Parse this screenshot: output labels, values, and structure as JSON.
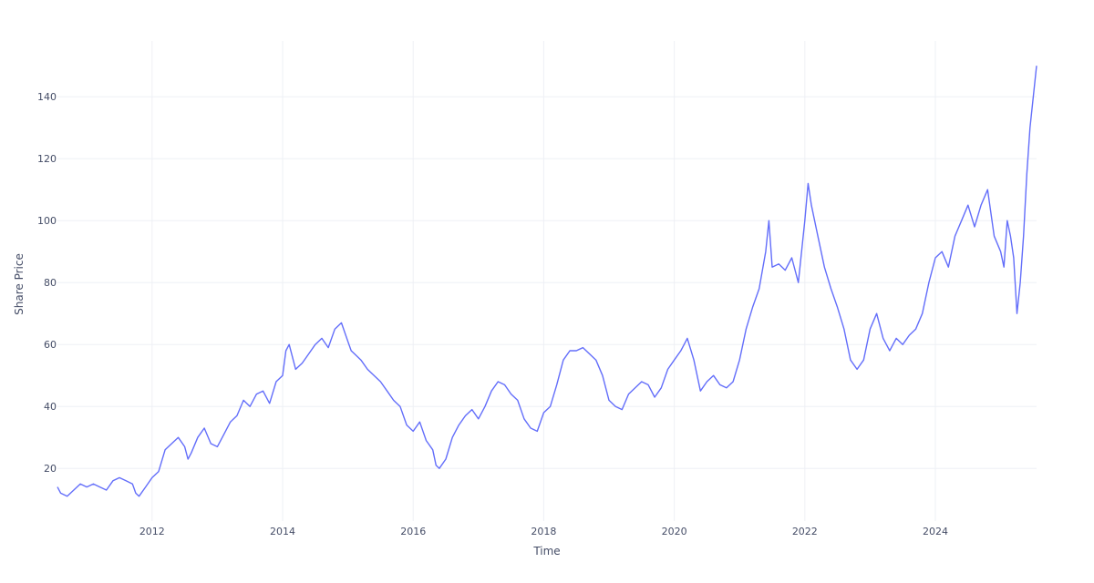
{
  "chart_data": {
    "type": "line",
    "title": "",
    "xlabel": "Time",
    "ylabel": "Share Price",
    "xlim": [
      2010.55,
      2025.55
    ],
    "ylim": [
      3,
      158
    ],
    "x_ticks": [
      2012,
      2014,
      2016,
      2018,
      2020,
      2022,
      2024
    ],
    "x_tick_labels": [
      "2012",
      "2014",
      "2016",
      "2018",
      "2020",
      "2022",
      "2024"
    ],
    "y_ticks": [
      20,
      40,
      60,
      80,
      100,
      120,
      140
    ],
    "y_tick_labels": [
      "20",
      "40",
      "60",
      "80",
      "100",
      "120",
      "140"
    ],
    "grid": true,
    "colors": {
      "line": "#636efa",
      "grid": "#eef0f5",
      "text": "#444c66"
    },
    "series": [
      {
        "x": [
          2010.55,
          2010.6,
          2010.7,
          2010.8,
          2010.9,
          2011.0,
          2011.1,
          2011.2,
          2011.3,
          2011.4,
          2011.5,
          2011.6,
          2011.7,
          2011.75,
          2011.8,
          2011.9,
          2012.0,
          2012.1,
          2012.2,
          2012.3,
          2012.4,
          2012.5,
          2012.55,
          2012.6,
          2012.7,
          2012.8,
          2012.9,
          2013.0,
          2013.1,
          2013.2,
          2013.3,
          2013.4,
          2013.5,
          2013.6,
          2013.7,
          2013.8,
          2013.9,
          2014.0,
          2014.05,
          2014.1,
          2014.2,
          2014.3,
          2014.4,
          2014.5,
          2014.6,
          2014.7,
          2014.8,
          2014.9,
          2015.0,
          2015.05,
          2015.1,
          2015.2,
          2015.3,
          2015.4,
          2015.5,
          2015.6,
          2015.7,
          2015.8,
          2015.9,
          2016.0,
          2016.1,
          2016.2,
          2016.3,
          2016.35,
          2016.4,
          2016.5,
          2016.6,
          2016.7,
          2016.8,
          2016.9,
          2017.0,
          2017.1,
          2017.2,
          2017.3,
          2017.4,
          2017.5,
          2017.6,
          2017.7,
          2017.8,
          2017.9,
          2018.0,
          2018.1,
          2018.2,
          2018.3,
          2018.4,
          2018.5,
          2018.6,
          2018.7,
          2018.8,
          2018.9,
          2019.0,
          2019.1,
          2019.2,
          2019.3,
          2019.4,
          2019.5,
          2019.6,
          2019.7,
          2019.8,
          2019.9,
          2020.0,
          2020.1,
          2020.15,
          2020.2,
          2020.3,
          2020.4,
          2020.5,
          2020.6,
          2020.7,
          2020.8,
          2020.9,
          2021.0,
          2021.1,
          2021.2,
          2021.3,
          2021.4,
          2021.45,
          2021.5,
          2021.6,
          2021.7,
          2021.8,
          2021.9,
          2022.0,
          2022.05,
          2022.1,
          2022.2,
          2022.3,
          2022.4,
          2022.5,
          2022.6,
          2022.7,
          2022.8,
          2022.9,
          2023.0,
          2023.1,
          2023.2,
          2023.3,
          2023.4,
          2023.5,
          2023.6,
          2023.7,
          2023.8,
          2023.9,
          2024.0,
          2024.1,
          2024.2,
          2024.3,
          2024.4,
          2024.5,
          2024.6,
          2024.7,
          2024.8,
          2024.9,
          2025.0,
          2025.05,
          2025.1,
          2025.15,
          2025.2,
          2025.25,
          2025.3,
          2025.35,
          2025.4,
          2025.45,
          2025.5,
          2025.55
        ],
        "values": [
          14,
          12,
          11,
          13,
          15,
          14,
          15,
          14,
          13,
          16,
          17,
          16,
          15,
          12,
          11,
          14,
          17,
          19,
          26,
          28,
          30,
          27,
          23,
          25,
          30,
          33,
          28,
          27,
          31,
          35,
          37,
          42,
          40,
          44,
          45,
          41,
          48,
          50,
          58,
          60,
          52,
          54,
          57,
          60,
          62,
          59,
          65,
          67,
          61,
          58,
          57,
          55,
          52,
          50,
          48,
          45,
          42,
          40,
          34,
          32,
          35,
          29,
          26,
          21,
          20,
          23,
          30,
          34,
          37,
          39,
          36,
          40,
          45,
          48,
          47,
          44,
          42,
          36,
          33,
          32,
          38,
          40,
          47,
          55,
          58,
          58,
          59,
          57,
          55,
          50,
          42,
          40,
          39,
          44,
          46,
          48,
          47,
          43,
          46,
          52,
          55,
          58,
          60,
          62,
          55,
          45,
          48,
          50,
          47,
          46,
          48,
          55,
          65,
          72,
          78,
          90,
          100,
          85,
          86,
          84,
          88,
          80,
          100,
          112,
          105,
          95,
          85,
          78,
          72,
          65,
          55,
          52,
          55,
          65,
          70,
          62,
          58,
          62,
          60,
          63,
          65,
          70,
          80,
          88,
          90,
          85,
          95,
          100,
          105,
          98,
          105,
          110,
          95,
          90,
          85,
          100,
          95,
          88,
          70,
          80,
          95,
          115,
          130,
          140,
          150
        ]
      }
    ]
  }
}
